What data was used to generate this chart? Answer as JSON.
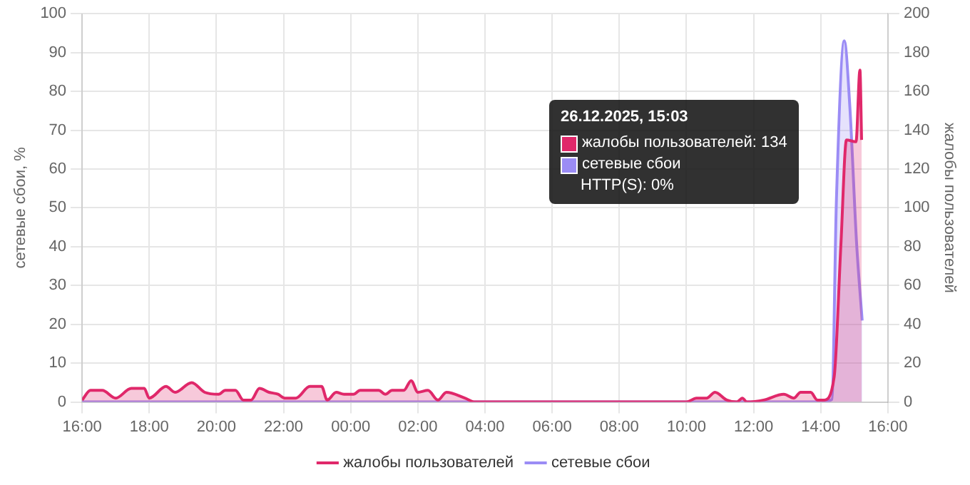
{
  "chart_data": {
    "type": "area",
    "ylabel": "сетевые сбои, %",
    "y2label": "жалобы пользователей",
    "xlim": [
      "2025-12-25T16:00",
      "2025-12-26T16:00"
    ],
    "xticks": [
      {
        "value": "2025-12-25T16:00",
        "label": "16:00"
      },
      {
        "value": "2025-12-25T18:00",
        "label": "18:00"
      },
      {
        "value": "2025-12-25T20:00",
        "label": "20:00"
      },
      {
        "value": "2025-12-25T22:00",
        "label": "22:00"
      },
      {
        "value": "2025-12-26T00:00",
        "label": "00:00"
      },
      {
        "value": "2025-12-26T02:00",
        "label": "02:00"
      },
      {
        "value": "2025-12-26T04:00",
        "label": "04:00"
      },
      {
        "value": "2025-12-26T06:00",
        "label": "06:00"
      },
      {
        "value": "2025-12-26T08:00",
        "label": "08:00"
      },
      {
        "value": "2025-12-26T10:00",
        "label": "10:00"
      },
      {
        "value": "2025-12-26T12:00",
        "label": "12:00"
      },
      {
        "value": "2025-12-26T14:00",
        "label": "14:00"
      },
      {
        "value": "2025-12-26T16:00",
        "label": "16:00"
      }
    ],
    "ylim": [
      0,
      100
    ],
    "yticks": [
      0,
      10,
      20,
      30,
      40,
      50,
      60,
      70,
      80,
      90,
      100
    ],
    "y2lim": [
      0,
      200
    ],
    "y2ticks": [
      0,
      20,
      40,
      60,
      80,
      100,
      120,
      140,
      160,
      180,
      200
    ],
    "series": [
      {
        "name": "жалобы пользователей",
        "color": "#e0286a",
        "axis": "y2",
        "x": [
          "2025-12-25T16:00",
          "2025-12-25T16:15",
          "2025-12-25T16:36",
          "2025-12-25T17:00",
          "2025-12-25T17:28",
          "2025-12-25T17:51",
          "2025-12-25T18:00",
          "2025-12-25T18:30",
          "2025-12-25T18:46",
          "2025-12-25T19:16",
          "2025-12-25T19:39",
          "2025-12-25T20:04",
          "2025-12-25T20:16",
          "2025-12-25T20:34",
          "2025-12-25T20:48",
          "2025-12-25T21:02",
          "2025-12-25T21:17",
          "2025-12-25T21:34",
          "2025-12-25T21:50",
          "2025-12-25T22:02",
          "2025-12-25T22:22",
          "2025-12-25T22:47",
          "2025-12-25T23:08",
          "2025-12-25T23:18",
          "2025-12-25T23:34",
          "2025-12-25T23:48",
          "2025-12-26T00:05",
          "2025-12-26T00:17",
          "2025-12-26T00:29",
          "2025-12-26T00:50",
          "2025-12-26T01:02",
          "2025-12-26T01:14",
          "2025-12-26T01:35",
          "2025-12-26T01:48",
          "2025-12-26T02:00",
          "2025-12-26T02:18",
          "2025-12-26T02:36",
          "2025-12-26T02:51",
          "2025-12-26T03:24",
          "2025-12-26T03:42",
          "2025-12-26T04:00",
          "2025-12-26T06:00",
          "2025-12-26T08:00",
          "2025-12-26T10:00",
          "2025-12-26T10:18",
          "2025-12-26T10:36",
          "2025-12-26T10:51",
          "2025-12-26T11:12",
          "2025-12-26T11:30",
          "2025-12-26T11:40",
          "2025-12-26T11:48",
          "2025-12-26T12:18",
          "2025-12-26T12:54",
          "2025-12-26T13:12",
          "2025-12-26T13:24",
          "2025-12-26T13:42",
          "2025-12-26T13:54",
          "2025-12-26T14:06",
          "2025-12-26T14:24",
          "2025-12-26T14:36",
          "2025-12-26T14:46",
          "2025-12-26T15:03",
          "2025-12-26T15:10",
          "2025-12-26T15:13"
        ],
        "values": [
          1,
          6,
          6,
          2,
          7,
          7,
          2,
          8,
          5,
          10,
          5,
          4,
          6,
          6,
          1,
          1,
          7,
          5,
          4,
          2,
          2,
          8,
          8,
          1,
          5,
          4,
          4,
          6,
          6,
          6,
          4,
          6,
          6,
          11,
          5,
          6,
          1,
          5,
          2,
          0,
          0,
          0,
          0,
          0,
          2,
          2,
          5,
          1,
          0,
          2,
          0,
          1,
          4,
          2,
          5,
          5,
          1,
          1,
          13,
          81,
          135,
          134,
          171,
          135
        ]
      },
      {
        "name": "сетевые сбои",
        "color": "#9b8cf5",
        "x": [
          "2025-12-25T16:00",
          "2025-12-25T20:00",
          "2025-12-26T00:00",
          "2025-12-26T04:00",
          "2025-12-26T08:00",
          "2025-12-26T12:00",
          "2025-12-26T14:00",
          "2025-12-26T14:20",
          "2025-12-26T14:28",
          "2025-12-26T14:42",
          "2025-12-26T14:52",
          "2025-12-26T15:04",
          "2025-12-26T15:14"
        ],
        "values": [
          0,
          0,
          0,
          0,
          0,
          0,
          0,
          0.7,
          52,
          93,
          76,
          41,
          21
        ]
      }
    ],
    "annotations": [
      "26.12.2025, 15:03",
      "жалобы пользователей: 134",
      "сетевые сбои",
      "HTTP(S): 0%"
    ],
    "grid": true,
    "legend": "bottom",
    "marker": "none",
    "line_style": "solid"
  }
}
